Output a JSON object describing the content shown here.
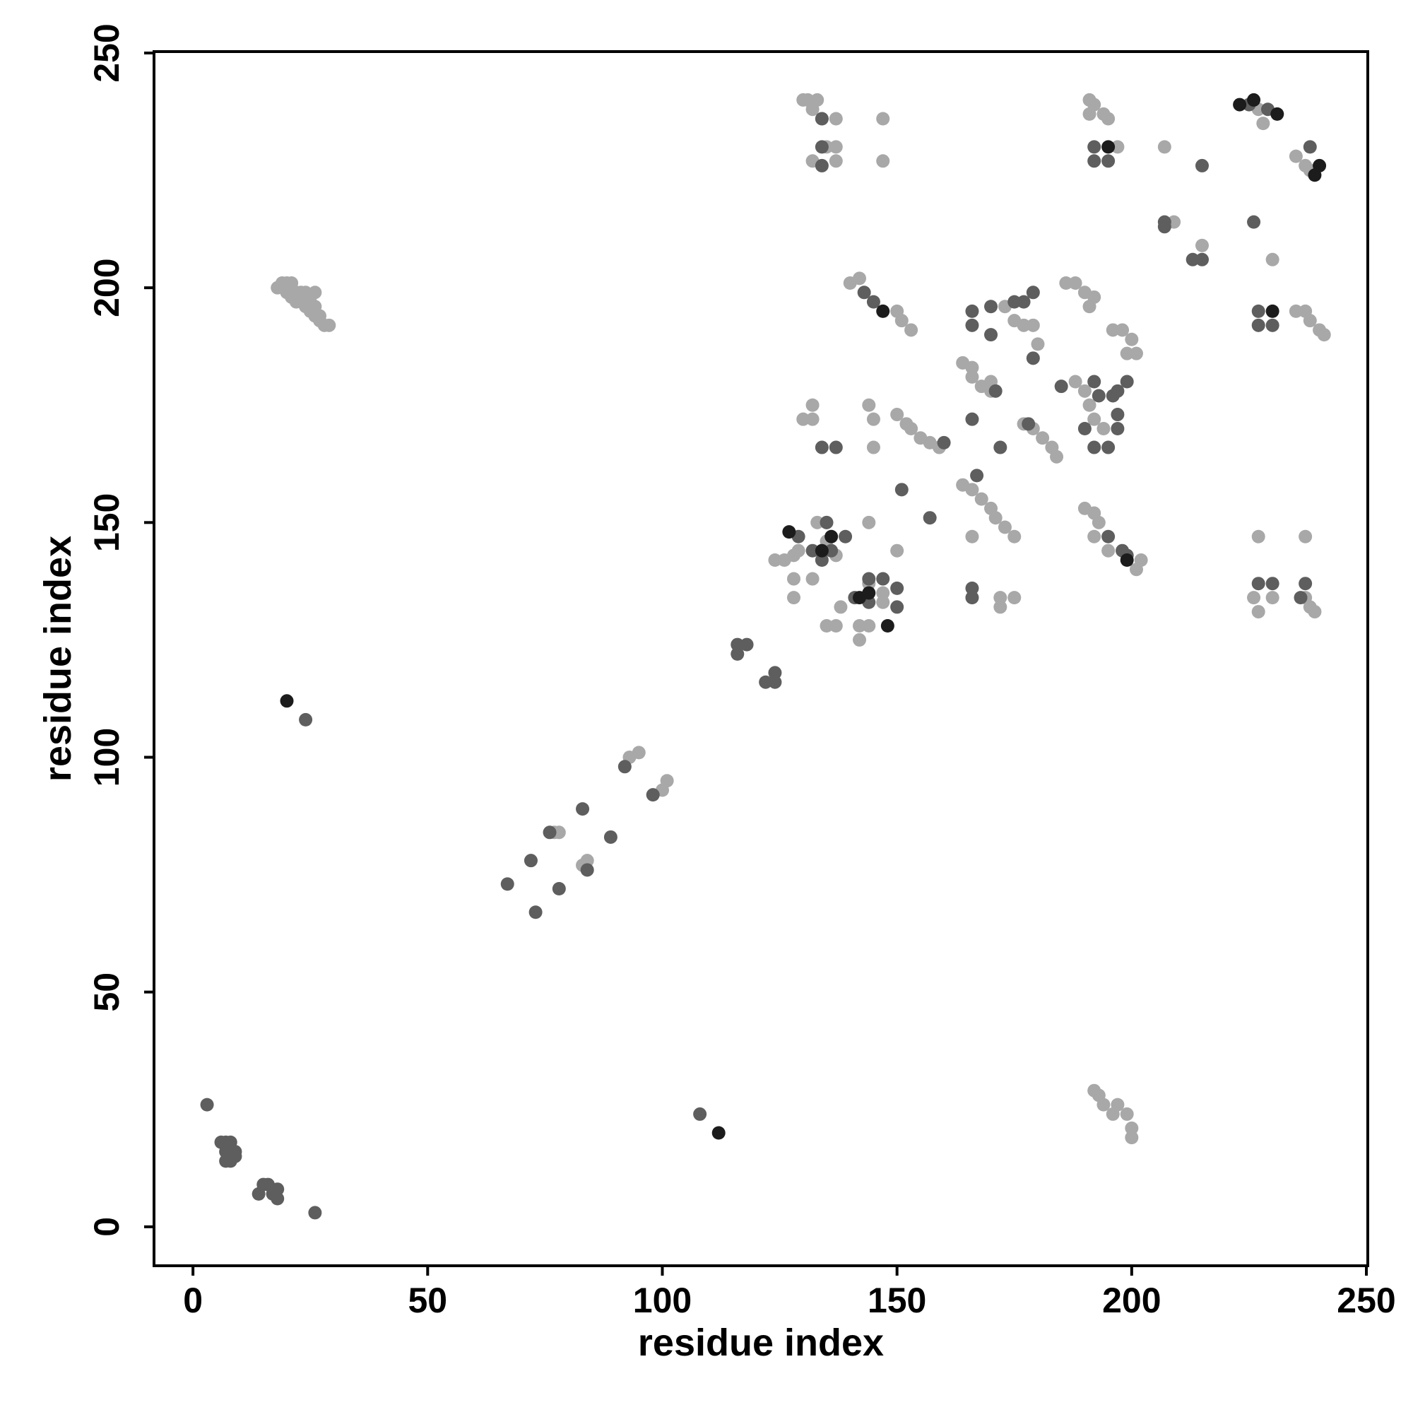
{
  "chart_data": {
    "type": "scatter",
    "x_label": "residue index",
    "y_label": "residue index",
    "xlim": [
      -8.3,
      250.3
    ],
    "ylim": [
      -8.3,
      250.3
    ],
    "xticks": [
      0,
      50,
      100,
      150,
      200,
      250
    ],
    "yticks": [
      0,
      50,
      100,
      150,
      200,
      250
    ],
    "grid": false,
    "series": [
      {
        "color": "#a8a8a8",
        "x": [
          18,
          19,
          20,
          21,
          20,
          21,
          22,
          23,
          24,
          22,
          23,
          24,
          25,
          26,
          25,
          26,
          27,
          27,
          28,
          29,
          26,
          77,
          78,
          83,
          84,
          93,
          95,
          100,
          101,
          124,
          126,
          128,
          128,
          128,
          132,
          133,
          135,
          135,
          137,
          135,
          137,
          138,
          142,
          142,
          144,
          144,
          147,
          147,
          150,
          144,
          129,
          130,
          131,
          133,
          132,
          134,
          137,
          147,
          132,
          137,
          147,
          135,
          137,
          140,
          142,
          150,
          151,
          153,
          130,
          132,
          132,
          144,
          145,
          145,
          150,
          152,
          153,
          155,
          157,
          159,
          164,
          166,
          166,
          168,
          170,
          170,
          164,
          166,
          168,
          170,
          171,
          173,
          175,
          166,
          172,
          175,
          172,
          173,
          175,
          177,
          179,
          180,
          177,
          179,
          181,
          183,
          184,
          186,
          188,
          190,
          192,
          191,
          196,
          198,
          200,
          201,
          199,
          188,
          190,
          191,
          192,
          194,
          190,
          192,
          193,
          192,
          195,
          202,
          201,
          191,
          192,
          194,
          195,
          191,
          197,
          192,
          193,
          194,
          196,
          197,
          199,
          200,
          200,
          207,
          209,
          215,
          230,
          227,
          237,
          227,
          228,
          235,
          237,
          238,
          235,
          237,
          238,
          240,
          241,
          226,
          227,
          230,
          237,
          238,
          239
        ],
        "y": [
          200,
          201,
          201,
          201,
          199,
          198,
          199,
          199,
          199,
          197,
          197,
          196,
          197,
          199,
          195,
          194,
          194,
          193,
          192,
          192,
          196,
          84,
          84,
          77,
          78,
          100,
          101,
          93,
          95,
          142,
          142,
          143,
          138,
          134,
          138,
          150,
          150,
          146,
          143,
          128,
          128,
          132,
          128,
          125,
          128,
          137,
          135,
          133,
          144,
          150,
          144,
          240,
          240,
          240,
          238,
          236,
          236,
          236,
          227,
          227,
          227,
          230,
          230,
          201,
          202,
          195,
          193,
          191,
          172,
          175,
          172,
          175,
          172,
          166,
          173,
          171,
          170,
          168,
          167,
          166,
          184,
          183,
          181,
          179,
          180,
          178,
          158,
          157,
          155,
          153,
          151,
          149,
          147,
          147,
          134,
          134,
          132,
          196,
          193,
          192,
          192,
          188,
          171,
          170,
          168,
          166,
          164,
          201,
          201,
          199,
          198,
          196,
          191,
          191,
          189,
          186,
          186,
          180,
          178,
          175,
          172,
          170,
          153,
          152,
          150,
          147,
          144,
          142,
          140,
          240,
          239,
          237,
          236,
          237,
          230,
          29,
          28,
          26,
          24,
          26,
          24,
          21,
          19,
          230,
          214,
          209,
          206,
          147,
          147,
          238,
          235,
          228,
          226,
          225,
          195,
          195,
          193,
          191,
          190,
          134,
          131,
          134,
          134,
          132,
          131
        ]
      },
      {
        "color": "#5e5e5e",
        "x": [
          3,
          6,
          7,
          8,
          7,
          8,
          9,
          7,
          8,
          9,
          14,
          15,
          16,
          18,
          18,
          17,
          26,
          24,
          67,
          72,
          73,
          78,
          76,
          83,
          84,
          89,
          92,
          98,
          108,
          116,
          118,
          116,
          122,
          124,
          124,
          129,
          132,
          134,
          135,
          136,
          139,
          141,
          144,
          147,
          150,
          150,
          144,
          134,
          134,
          134,
          143,
          145,
          134,
          137,
          160,
          157,
          151,
          166,
          167,
          171,
          166,
          166,
          170,
          170,
          172,
          166,
          166,
          175,
          177,
          179,
          179,
          178,
          185,
          192,
          193,
          196,
          197,
          199,
          197,
          197,
          190,
          192,
          195,
          195,
          198,
          199,
          192,
          192,
          195,
          207,
          207,
          213,
          215,
          215,
          226,
          227,
          227,
          230,
          225,
          229,
          238,
          227,
          230,
          237,
          236
        ],
        "y": [
          26,
          18,
          18,
          18,
          16,
          16,
          16,
          14,
          14,
          15,
          7,
          9,
          9,
          8,
          6,
          7,
          3,
          108,
          73,
          78,
          67,
          72,
          84,
          89,
          76,
          83,
          98,
          92,
          24,
          124,
          124,
          122,
          116,
          118,
          116,
          147,
          144,
          142,
          150,
          144,
          147,
          134,
          138,
          138,
          136,
          132,
          133,
          236,
          230,
          226,
          199,
          197,
          166,
          166,
          167,
          151,
          157,
          172,
          160,
          178,
          195,
          192,
          190,
          196,
          166,
          136,
          134,
          197,
          197,
          199,
          185,
          171,
          179,
          180,
          177,
          177,
          178,
          180,
          173,
          170,
          170,
          166,
          166,
          147,
          144,
          143,
          230,
          227,
          227,
          214,
          213,
          206,
          206,
          226,
          214,
          195,
          192,
          192,
          239,
          238,
          230,
          137,
          137,
          137,
          134
        ]
      },
      {
        "color": "#1c1c1c",
        "x": [
          20,
          112,
          127,
          134,
          136,
          142,
          144,
          148,
          147,
          199,
          195,
          230,
          223,
          226,
          231,
          239,
          240
        ],
        "y": [
          112,
          20,
          148,
          144,
          147,
          134,
          135,
          128,
          195,
          142,
          230,
          195,
          239,
          240,
          237,
          224,
          226
        ]
      }
    ]
  }
}
